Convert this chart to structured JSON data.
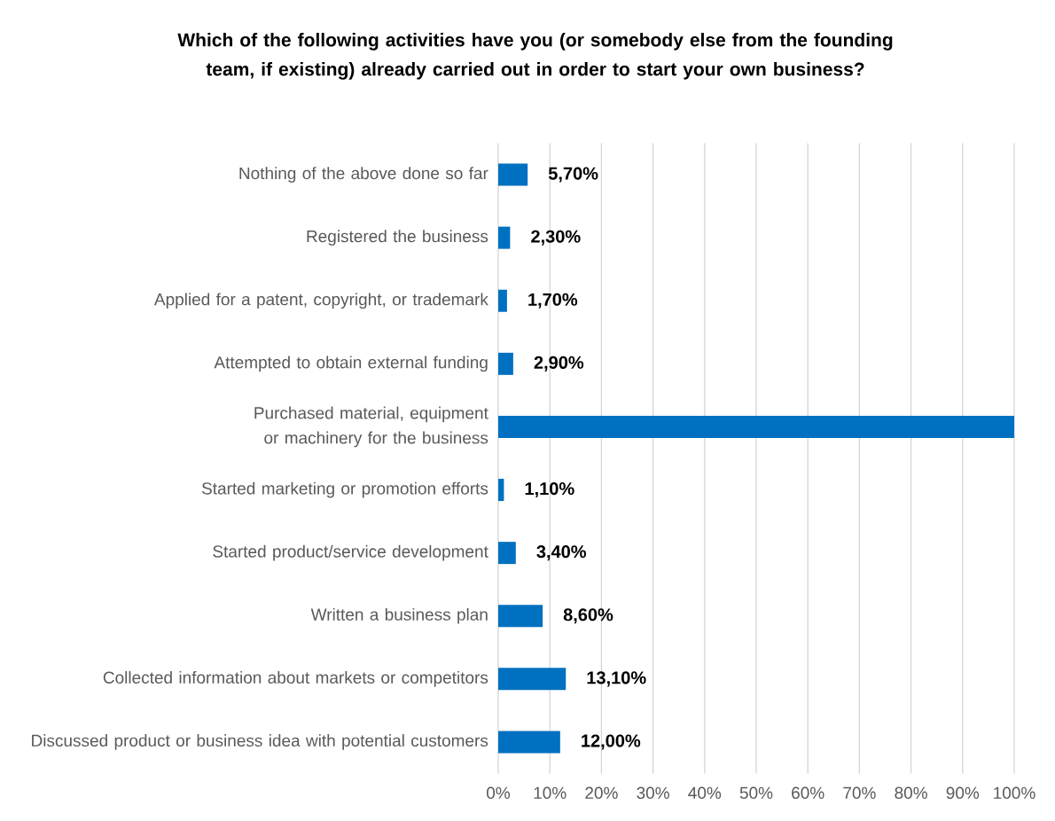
{
  "chart_data": {
    "type": "bar",
    "orientation": "horizontal",
    "title": "Which of the following activities have you (or somebody else from the founding team, if existing) already carried out in order to start your own business?",
    "categories": [
      "Nothing of the above done so far",
      "Registered the business",
      "Applied for a patent, copyright, or trademark",
      "Attempted to obtain external funding",
      "Purchased material, equipment or machinery for the business",
      "Started marketing or promotion efforts",
      "Started product/service development",
      "Written a business plan",
      "Collected information about markets or competitors",
      "Discussed product or business idea with potential customers"
    ],
    "values": [
      5.7,
      2.3,
      1.7,
      2.9,
      100,
      1.1,
      3.4,
      8.6,
      13.1,
      12.0
    ],
    "value_labels": [
      "5,70%",
      "2,30%",
      "1,70%",
      "2,90%",
      null,
      "1,10%",
      "3,40%",
      "8,60%",
      "13,10%",
      "12,00%"
    ],
    "color": "#0070c0",
    "xlim": [
      0,
      100
    ],
    "xticks": [
      {
        "value": 0,
        "label": "0%"
      },
      {
        "value": 10,
        "label": "10%"
      },
      {
        "value": 20,
        "label": "20%"
      },
      {
        "value": 30,
        "label": "30%"
      },
      {
        "value": 40,
        "label": "40%"
      },
      {
        "value": 50,
        "label": "50%"
      },
      {
        "value": 60,
        "label": "60%"
      },
      {
        "value": 70,
        "label": "70%"
      },
      {
        "value": 80,
        "label": "80%"
      },
      {
        "value": 90,
        "label": "90%"
      },
      {
        "value": 100,
        "label": "100%"
      }
    ],
    "grid": "x"
  }
}
